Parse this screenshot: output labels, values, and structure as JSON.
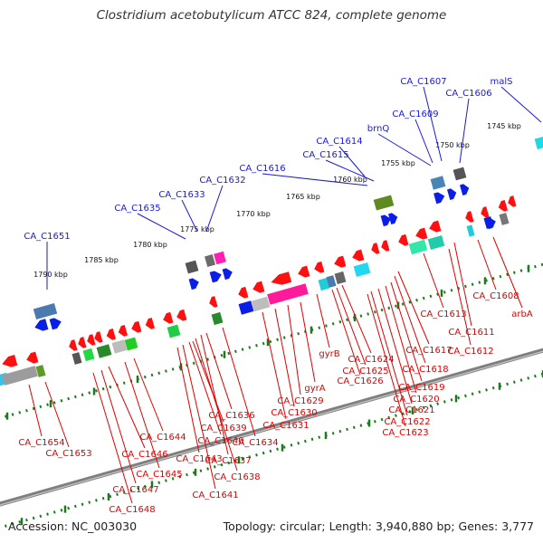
{
  "title": "Clostridium acetobutylicum ATCC 824, complete genome",
  "footer": {
    "accession": "Accession: NC_003030",
    "summary": "Topology: circular; Length: 3,940,880 bp; Genes: 3,777"
  },
  "colors": {
    "backbone": "#7f7f7f",
    "forward_labels": "#1a1ad6",
    "reverse_labels": "#e00000",
    "ticks": "#1f7a1f"
  },
  "scale_ticks": [
    "1745 kbp",
    "1750 kbp",
    "1755 kbp",
    "1760 kbp",
    "1765 kbp",
    "1770 kbp",
    "1775 kbp",
    "1780 kbp",
    "1785 kbp",
    "1790 kbp"
  ],
  "forward_genes": [
    "malS",
    "CA_C1606",
    "CA_C1607",
    "CA_C1609",
    "brnQ",
    "CA_C1614",
    "CA_C1615",
    "CA_C1616",
    "CA_C1632",
    "CA_C1633",
    "CA_C1635",
    "CA_C1651"
  ],
  "reverse_genes": [
    "CA_C1608",
    "arbA",
    "CA_C1611",
    "CA_C1612",
    "CA_C1613",
    "CA_C1617",
    "CA_C1618",
    "CA_C1619",
    "CA_C1620",
    "CA_C1621",
    "CA_C1622",
    "CA_C1623",
    "CA_C1624",
    "CA_C1625",
    "CA_C1626",
    "gyrB",
    "gyrA",
    "CA_C1629",
    "CA_C1630",
    "CA_C1631",
    "CA_C1634",
    "CA_C1636",
    "CA_C1637",
    "CA_C1638",
    "CA_C1639",
    "CA_C1640",
    "CA_C1641",
    "CA_C1643",
    "CA_C1644",
    "CA_C1645",
    "CA_C1646",
    "CA_C1647",
    "CA_C1648",
    "CA_C1653",
    "CA_C1654"
  ]
}
